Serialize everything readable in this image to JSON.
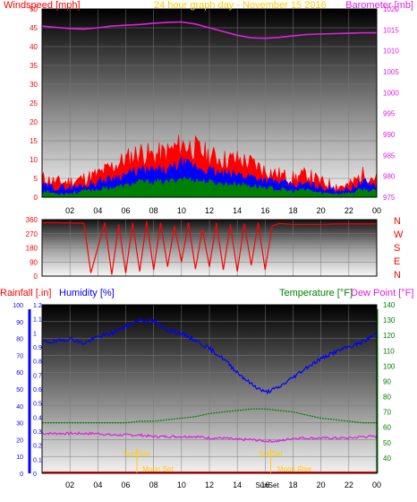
{
  "colors": {
    "wind_speed": "#ff0000",
    "wind_avg": "#0000ff",
    "wind_low": "#008000",
    "barometer": "#e020e0",
    "direction": "#ff0000",
    "humidity": "#0000ff",
    "temperature": "#008000",
    "dew_point": "#e020e0",
    "rainfall": "#ff0000",
    "sun_moon": "#ffcc00",
    "header_text": "#ffcc00",
    "axis_text": "#000000"
  },
  "header": {
    "title": "24 hour graph day - November 15 2016"
  },
  "chart_data": [
    {
      "type": "line",
      "panel": "wind-barometer",
      "left_label": "Windspeed [mph]",
      "right_label": "Barometer [mb]",
      "x_ticks": [
        "02",
        "04",
        "06",
        "08",
        "10",
        "12",
        "14",
        "16",
        "18",
        "20",
        "22",
        "00"
      ],
      "x_range_hours": [
        0,
        24
      ],
      "y_left_range": [
        0,
        50
      ],
      "y_left_ticks": [
        "0",
        "5",
        "10",
        "15",
        "20",
        "25",
        "30",
        "35",
        "40",
        "45",
        "50"
      ],
      "y_right_range": [
        975,
        1020
      ],
      "y_right_ticks": [
        "975",
        "980",
        "985",
        "990",
        "995",
        "1000",
        "1005",
        "1010",
        "1015",
        "1020"
      ],
      "series": [
        {
          "key": "barometer",
          "x": [
            0,
            1,
            2,
            3,
            4,
            5,
            6,
            7,
            8,
            9,
            10,
            11,
            12,
            13,
            14,
            15,
            16,
            17,
            18,
            19,
            20,
            21,
            22,
            23,
            24
          ],
          "values": [
            1015.9,
            1015.6,
            1015.3,
            1015.2,
            1015.5,
            1015.9,
            1016.1,
            1016.3,
            1016.6,
            1016.8,
            1016.9,
            1016.4,
            1015.5,
            1014.6,
            1013.7,
            1013.1,
            1013.0,
            1013.2,
            1013.6,
            1013.9,
            1014.0,
            1014.1,
            1014.2,
            1014.3,
            1014.3
          ],
          "axis": "right"
        },
        {
          "key": "wind_gust",
          "x": [
            0,
            1,
            2,
            3,
            4,
            5,
            6,
            7,
            8,
            9,
            10,
            11,
            12,
            13,
            14,
            15,
            16,
            17,
            18,
            19,
            20,
            21,
            22,
            23,
            24
          ],
          "values": [
            5,
            4,
            4,
            5,
            6,
            8,
            10,
            12,
            11,
            12,
            14,
            13,
            11,
            10,
            10,
            9,
            7,
            6,
            5,
            6,
            4,
            3,
            3,
            6,
            5
          ],
          "axis": "left"
        },
        {
          "key": "wind_avg",
          "x": [
            0,
            1,
            2,
            3,
            4,
            5,
            6,
            7,
            8,
            9,
            10,
            11,
            12,
            13,
            14,
            15,
            16,
            17,
            18,
            19,
            20,
            21,
            22,
            23,
            24
          ],
          "values": [
            3,
            2.5,
            2.5,
            3,
            4,
            5,
            6,
            7,
            7,
            7,
            9,
            8,
            7,
            6,
            6,
            5.5,
            4.5,
            4,
            3,
            3.5,
            2.5,
            2,
            2,
            4,
            3
          ],
          "axis": "left"
        },
        {
          "key": "wind_low",
          "x": [
            0,
            1,
            2,
            3,
            4,
            5,
            6,
            7,
            8,
            9,
            10,
            11,
            12,
            13,
            14,
            15,
            16,
            17,
            18,
            19,
            20,
            21,
            22,
            23,
            24
          ],
          "values": [
            1.5,
            1,
            1,
            1.5,
            2,
            2.5,
            3,
            4,
            4,
            4,
            5,
            4.5,
            4,
            3.5,
            3.5,
            3,
            2.5,
            2,
            1.5,
            2,
            1,
            1,
            1,
            2,
            1.5
          ],
          "axis": "left"
        }
      ]
    },
    {
      "type": "scatter",
      "panel": "wind-direction",
      "y_left_range": [
        0,
        360
      ],
      "y_left_ticks": [
        "0",
        "90",
        "180",
        "270",
        "360"
      ],
      "compass_labels": [
        "N",
        "W",
        "S",
        "E",
        "N"
      ],
      "series": [
        {
          "key": "direction",
          "x": [
            0,
            1,
            2,
            3,
            3.5,
            4,
            4.5,
            5,
            5.5,
            6,
            6.5,
            7,
            7.5,
            8,
            8.5,
            9,
            9.5,
            10,
            10.5,
            11,
            11.5,
            12,
            12.5,
            13,
            13.5,
            14,
            14.5,
            15,
            15.5,
            16,
            16.5,
            17,
            18,
            19,
            20,
            21,
            22,
            23,
            24
          ],
          "values": [
            340,
            340,
            338,
            337,
            20,
            180,
            340,
            10,
            330,
            20,
            340,
            30,
            350,
            40,
            340,
            60,
            320,
            90,
            340,
            45,
            300,
            60,
            340,
            40,
            330,
            30,
            335,
            70,
            340,
            40,
            320,
            335,
            330,
            330,
            330,
            332,
            333,
            332,
            333
          ]
        }
      ]
    },
    {
      "type": "line",
      "panel": "rain-humidity-temperature",
      "left_labels": [
        "Rainfall [.in]",
        "Humidity [%]"
      ],
      "right_labels": [
        "Temperature [°F]",
        "Dew Point [°F]"
      ],
      "rain_range": [
        0,
        1.2
      ],
      "rain_ticks": [
        "0",
        "0.1",
        "0.2",
        "0.3",
        "0.4",
        "0.5",
        "0.6",
        "0.7",
        "0.8",
        "0.9",
        "1",
        "1.1",
        "1.2"
      ],
      "humidity_range": [
        0,
        100
      ],
      "humidity_ticks": [
        "0",
        "10",
        "20",
        "30",
        "40",
        "50",
        "60",
        "70",
        "80",
        "90",
        "100"
      ],
      "temperature_range": [
        30,
        140
      ],
      "temperature_ticks": [
        "40",
        "50",
        "60",
        "70",
        "80",
        "90",
        "100",
        "110",
        "120",
        "130",
        "140"
      ],
      "annotations": [
        {
          "label": "SunRise",
          "x_hours": 6.8,
          "type": "sun"
        },
        {
          "label": "SunSet",
          "x_hours": 16.4,
          "type": "sun"
        },
        {
          "label": "Moon Set",
          "x_hours": 8.3,
          "type": "moon"
        },
        {
          "label": "Moon Rise",
          "x_hours": 18.1,
          "type": "moon"
        },
        {
          "label": "SunSet",
          "x_hours": 16.4,
          "type": "sun-bottom"
        }
      ],
      "series": [
        {
          "key": "humidity",
          "x": [
            0,
            1,
            2,
            3,
            4,
            5,
            6,
            7,
            8,
            9,
            10,
            11,
            12,
            13,
            14,
            15,
            16,
            17,
            18,
            19,
            20,
            21,
            22,
            23,
            24
          ],
          "values": [
            78,
            78,
            80,
            77,
            81,
            83,
            87,
            91,
            90,
            85,
            83,
            79,
            74,
            68,
            60,
            53,
            48,
            51,
            57,
            63,
            68,
            72,
            75,
            78,
            83
          ],
          "axis": "humidity"
        },
        {
          "key": "temperature",
          "x": [
            0,
            1,
            2,
            3,
            4,
            5,
            6,
            7,
            8,
            9,
            10,
            11,
            12,
            13,
            14,
            15,
            16,
            17,
            18,
            19,
            20,
            21,
            22,
            23,
            24
          ],
          "values": [
            63,
            63,
            63,
            63,
            63,
            63,
            63,
            64,
            64,
            65,
            66,
            67,
            69,
            70,
            71,
            72,
            72,
            71,
            70,
            68,
            66,
            65,
            64,
            63,
            63
          ],
          "axis": "temperature"
        },
        {
          "key": "dew_point",
          "x": [
            0,
            1,
            2,
            3,
            4,
            5,
            6,
            7,
            8,
            9,
            10,
            11,
            12,
            13,
            14,
            15,
            16,
            17,
            18,
            19,
            20,
            21,
            22,
            23,
            24
          ],
          "values": [
            56,
            56,
            56,
            56,
            56,
            55,
            55,
            55,
            54,
            54,
            54,
            54,
            53,
            53,
            52,
            52,
            51,
            51,
            53,
            53,
            53,
            53,
            53,
            54,
            54
          ],
          "axis": "temperature"
        },
        {
          "key": "rainfall",
          "x": [
            0,
            24
          ],
          "values": [
            0,
            0
          ],
          "axis": "rain"
        }
      ]
    }
  ]
}
